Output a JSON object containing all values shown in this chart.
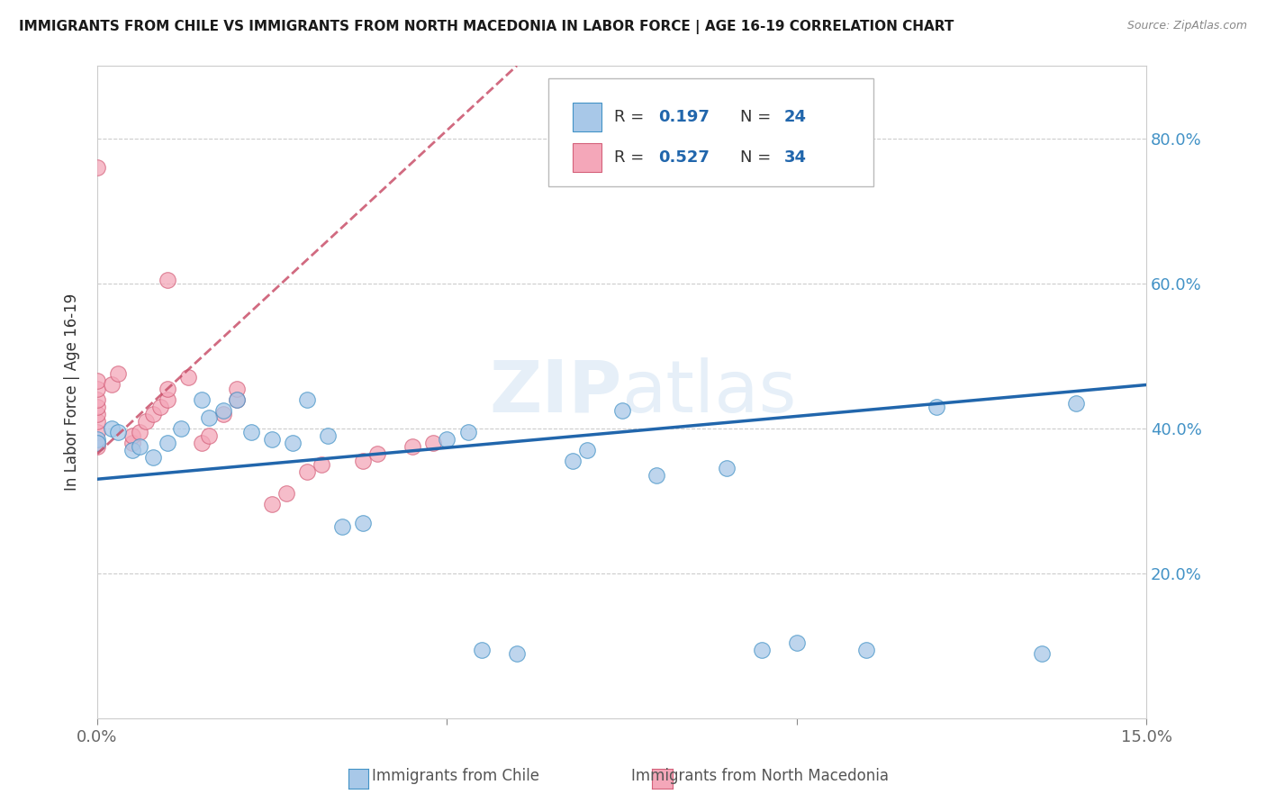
{
  "title": "IMMIGRANTS FROM CHILE VS IMMIGRANTS FROM NORTH MACEDONIA IN LABOR FORCE | AGE 16-19 CORRELATION CHART",
  "source": "Source: ZipAtlas.com",
  "ylabel": "In Labor Force | Age 16-19",
  "xlim": [
    0.0,
    0.15
  ],
  "ylim": [
    0.0,
    0.9
  ],
  "xtick_positions": [
    0.0,
    0.05,
    0.1,
    0.15
  ],
  "xticklabels": [
    "0.0%",
    "",
    "",
    "15.0%"
  ],
  "ytick_positions": [
    0.0,
    0.2,
    0.4,
    0.6,
    0.8
  ],
  "right_yticklabels": [
    "",
    "20.0%",
    "40.0%",
    "60.0%",
    "80.0%"
  ],
  "chile_color": "#a8c8e8",
  "chile_edge": "#4292c6",
  "chile_line_color": "#2166ac",
  "macedonia_color": "#f4a7b9",
  "macedonia_edge": "#d4607a",
  "macedonia_line_color": "#c9506a",
  "legend_color": "#2166ac",
  "watermark": "ZIPatlas",
  "chile_points": [
    [
      0.0,
      0.385
    ],
    [
      0.0,
      0.38
    ],
    [
      0.002,
      0.4
    ],
    [
      0.003,
      0.395
    ],
    [
      0.005,
      0.37
    ],
    [
      0.006,
      0.375
    ],
    [
      0.008,
      0.36
    ],
    [
      0.01,
      0.38
    ],
    [
      0.012,
      0.4
    ],
    [
      0.015,
      0.44
    ],
    [
      0.016,
      0.415
    ],
    [
      0.018,
      0.425
    ],
    [
      0.02,
      0.44
    ],
    [
      0.022,
      0.395
    ],
    [
      0.025,
      0.385
    ],
    [
      0.028,
      0.38
    ],
    [
      0.03,
      0.44
    ],
    [
      0.033,
      0.39
    ],
    [
      0.035,
      0.265
    ],
    [
      0.038,
      0.27
    ],
    [
      0.05,
      0.385
    ],
    [
      0.053,
      0.395
    ],
    [
      0.068,
      0.355
    ],
    [
      0.07,
      0.37
    ],
    [
      0.075,
      0.425
    ],
    [
      0.08,
      0.335
    ],
    [
      0.09,
      0.345
    ],
    [
      0.095,
      0.095
    ],
    [
      0.1,
      0.105
    ],
    [
      0.11,
      0.095
    ],
    [
      0.12,
      0.43
    ],
    [
      0.135,
      0.09
    ],
    [
      0.14,
      0.435
    ],
    [
      0.055,
      0.095
    ],
    [
      0.06,
      0.09
    ]
  ],
  "macedonia_points": [
    [
      0.0,
      0.375
    ],
    [
      0.0,
      0.38
    ],
    [
      0.0,
      0.395
    ],
    [
      0.0,
      0.41
    ],
    [
      0.0,
      0.42
    ],
    [
      0.0,
      0.43
    ],
    [
      0.0,
      0.44
    ],
    [
      0.0,
      0.455
    ],
    [
      0.0,
      0.465
    ],
    [
      0.002,
      0.46
    ],
    [
      0.003,
      0.475
    ],
    [
      0.005,
      0.38
    ],
    [
      0.005,
      0.39
    ],
    [
      0.006,
      0.395
    ],
    [
      0.007,
      0.41
    ],
    [
      0.008,
      0.42
    ],
    [
      0.009,
      0.43
    ],
    [
      0.01,
      0.44
    ],
    [
      0.01,
      0.455
    ],
    [
      0.013,
      0.47
    ],
    [
      0.015,
      0.38
    ],
    [
      0.016,
      0.39
    ],
    [
      0.018,
      0.42
    ],
    [
      0.02,
      0.44
    ],
    [
      0.02,
      0.455
    ],
    [
      0.025,
      0.295
    ],
    [
      0.027,
      0.31
    ],
    [
      0.03,
      0.34
    ],
    [
      0.032,
      0.35
    ],
    [
      0.038,
      0.355
    ],
    [
      0.04,
      0.365
    ],
    [
      0.045,
      0.375
    ],
    [
      0.048,
      0.38
    ],
    [
      0.01,
      0.605
    ],
    [
      0.0,
      0.76
    ]
  ]
}
